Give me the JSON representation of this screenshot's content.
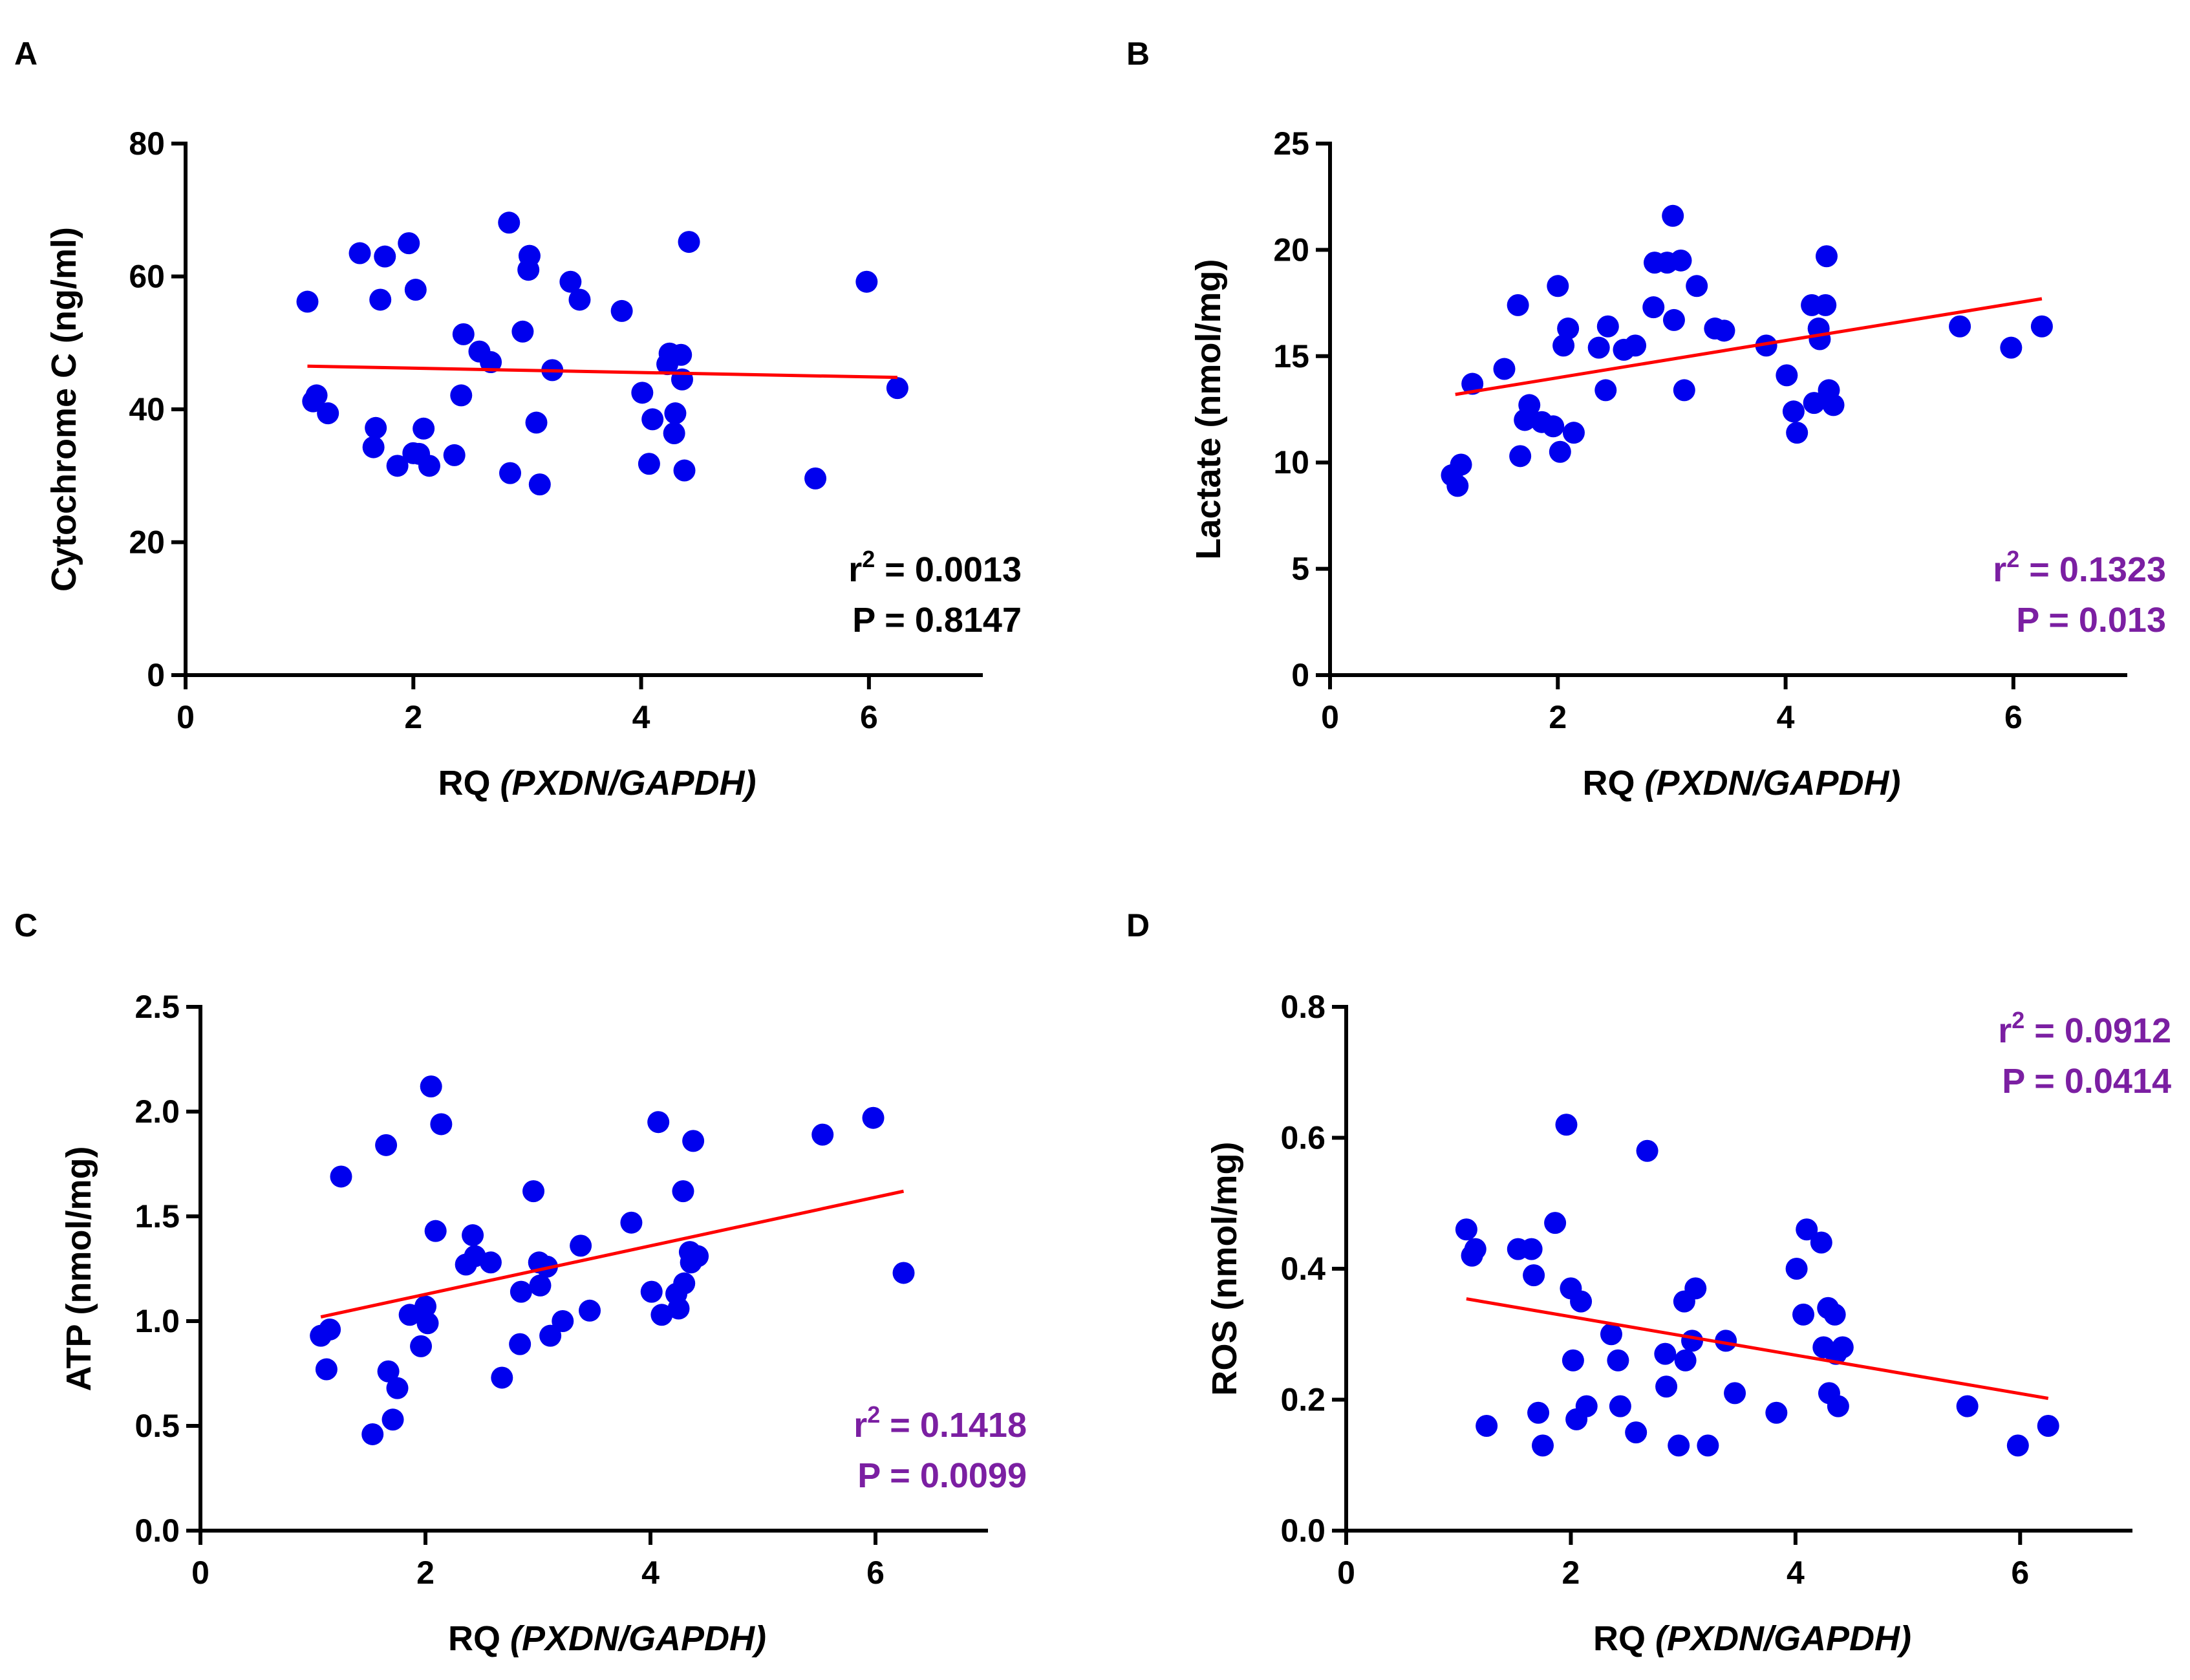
{
  "chart_data": [
    {
      "panel": "A",
      "type": "scatter",
      "xlabel_main": "RQ ",
      "xlabel_gene": "(PXDN/GAPDH)",
      "ylabel": "Cytochrome C (ng/ml)",
      "xlim": [
        0,
        7
      ],
      "ylim": [
        0,
        80
      ],
      "xticks": [
        0,
        2,
        4,
        6
      ],
      "yticks": [
        0,
        20,
        40,
        60,
        80
      ],
      "ytick_labels": [
        "0",
        "20",
        "40",
        "60",
        "80"
      ],
      "stat_color": "#000000",
      "r2_label": "r",
      "r2_sup": "2",
      "r2_value": " = 0.0013",
      "p_text": "P = 0.8147",
      "legend_position": "bottom-right",
      "regression": {
        "x": [
          1.07,
          6.25
        ],
        "y": [
          46.5,
          44.8
        ]
      },
      "x": [
        1.07,
        1.12,
        1.15,
        1.25,
        1.53,
        1.65,
        1.67,
        1.71,
        1.75,
        1.86,
        1.96,
        2.0,
        2.02,
        2.05,
        2.09,
        2.14,
        2.36,
        2.42,
        2.44,
        2.58,
        2.68,
        2.84,
        2.85,
        2.96,
        3.01,
        3.02,
        3.08,
        3.11,
        3.22,
        3.38,
        3.46,
        3.83,
        4.01,
        4.07,
        4.1,
        4.23,
        4.25,
        4.29,
        4.3,
        4.35,
        4.36,
        4.38,
        4.42,
        5.53,
        5.98,
        6.25
      ],
      "y": [
        56.2,
        41.2,
        42.1,
        39.4,
        63.5,
        34.3,
        37.2,
        56.5,
        63.0,
        31.5,
        65.0,
        33.4,
        58.0,
        33.3,
        37.1,
        31.5,
        33.1,
        42.1,
        51.3,
        48.7,
        47.1,
        68.1,
        30.4,
        51.7,
        61.0,
        63.1,
        38.0,
        28.7,
        45.9,
        59.2,
        56.5,
        54.8,
        42.5,
        31.8,
        38.5,
        46.8,
        48.4,
        36.4,
        39.4,
        48.2,
        44.5,
        30.8,
        65.2,
        29.6,
        59.2,
        43.2
      ]
    },
    {
      "panel": "B",
      "type": "scatter",
      "xlabel_main": "RQ ",
      "xlabel_gene": "(PXDN/GAPDH)",
      "ylabel": "Lactate (nmol/mg)",
      "xlim": [
        0,
        7
      ],
      "ylim": [
        0,
        25
      ],
      "xticks": [
        0,
        2,
        4,
        6
      ],
      "yticks": [
        0,
        5,
        10,
        15,
        20,
        25
      ],
      "ytick_labels": [
        "0",
        "5",
        "10",
        "15",
        "20",
        "25"
      ],
      "stat_color": "#7b1fa2",
      "r2_label": "r",
      "r2_sup": "2",
      "r2_value": " = 0.1323",
      "p_text": "P = 0.013",
      "legend_position": "bottom-right",
      "regression": {
        "x": [
          1.1,
          6.25
        ],
        "y": [
          13.2,
          17.7
        ]
      },
      "x": [
        1.07,
        1.12,
        1.15,
        1.25,
        1.53,
        1.65,
        1.67,
        1.71,
        1.75,
        1.86,
        1.96,
        2.0,
        2.02,
        2.05,
        2.09,
        2.14,
        2.36,
        2.42,
        2.44,
        2.58,
        2.68,
        2.84,
        2.85,
        2.96,
        3.01,
        3.02,
        3.08,
        3.11,
        3.22,
        3.38,
        3.46,
        3.83,
        4.01,
        4.07,
        4.1,
        4.23,
        4.25,
        4.29,
        4.3,
        4.35,
        4.36,
        4.38,
        4.42,
        5.53,
        5.98,
        6.25
      ],
      "y": [
        9.4,
        8.9,
        9.9,
        13.7,
        14.4,
        17.4,
        10.3,
        12.0,
        12.7,
        11.9,
        11.7,
        18.3,
        10.5,
        15.5,
        16.3,
        11.4,
        15.4,
        13.4,
        16.4,
        15.3,
        15.5,
        17.3,
        19.4,
        19.4,
        21.6,
        16.7,
        19.5,
        13.4,
        18.3,
        16.3,
        16.2,
        15.5,
        14.1,
        12.4,
        11.4,
        17.4,
        12.8,
        16.3,
        15.8,
        17.4,
        19.7,
        13.4,
        12.7,
        16.4,
        15.4,
        16.4
      ]
    },
    {
      "panel": "C",
      "type": "scatter",
      "xlabel_main": "RQ ",
      "xlabel_gene": "(PXDN/GAPDH)",
      "ylabel": "ATP (nmol/mg)",
      "xlim": [
        0,
        7
      ],
      "ylim": [
        0,
        2.5
      ],
      "xticks": [
        0,
        2,
        4,
        6
      ],
      "yticks": [
        0,
        0.5,
        1.0,
        1.5,
        2.0,
        2.5
      ],
      "ytick_labels": [
        "0.0",
        "0.5",
        "1.0",
        "1.5",
        "2.0",
        "2.5"
      ],
      "stat_color": "#7b1fa2",
      "r2_label": "r",
      "r2_sup": "2",
      "r2_value": " = 0.1418",
      "p_text": "P = 0.0099",
      "legend_position": "bottom-right",
      "regression": {
        "x": [
          1.07,
          6.25
        ],
        "y": [
          1.02,
          1.62
        ]
      },
      "x": [
        1.07,
        1.12,
        1.15,
        1.25,
        1.53,
        1.65,
        1.67,
        1.71,
        1.75,
        1.86,
        1.96,
        2.0,
        2.02,
        2.05,
        2.09,
        2.14,
        2.36,
        2.42,
        2.44,
        2.58,
        2.68,
        2.84,
        2.85,
        2.96,
        3.01,
        3.02,
        3.08,
        3.11,
        3.22,
        3.38,
        3.46,
        3.83,
        4.01,
        4.07,
        4.1,
        4.23,
        4.25,
        4.29,
        4.3,
        4.35,
        4.36,
        4.38,
        4.42,
        5.53,
        5.98,
        6.25
      ],
      "y": [
        0.93,
        0.77,
        0.96,
        1.69,
        0.46,
        1.84,
        0.76,
        0.53,
        0.68,
        1.03,
        0.88,
        1.07,
        0.99,
        2.12,
        1.43,
        1.94,
        1.27,
        1.41,
        1.31,
        1.28,
        0.73,
        0.89,
        1.14,
        1.62,
        1.28,
        1.17,
        1.26,
        0.93,
        1.0,
        1.36,
        1.05,
        1.47,
        1.14,
        1.95,
        1.03,
        1.13,
        1.06,
        1.62,
        1.18,
        1.33,
        1.28,
        1.86,
        1.31,
        1.89,
        1.97,
        1.23
      ]
    },
    {
      "panel": "D",
      "type": "scatter",
      "xlabel_main": "RQ ",
      "xlabel_gene": "(PXDN/GAPDH)",
      "ylabel": "ROS (nmol/mg)",
      "xlim": [
        0,
        7
      ],
      "ylim": [
        0,
        0.8
      ],
      "xticks": [
        0,
        2,
        4,
        6
      ],
      "yticks": [
        0,
        0.2,
        0.4,
        0.6,
        0.8
      ],
      "ytick_labels": [
        "0.0",
        "0.2",
        "0.4",
        "0.6",
        "0.8"
      ],
      "stat_color": "#7b1fa2",
      "r2_label": "r",
      "r2_sup": "2",
      "r2_value": " = 0.0912",
      "p_text": "P = 0.0414",
      "legend_position": "top-right",
      "regression": {
        "x": [
          1.07,
          6.25
        ],
        "y": [
          0.354,
          0.202
        ]
      },
      "x": [
        1.07,
        1.12,
        1.15,
        1.25,
        1.53,
        1.65,
        1.67,
        1.71,
        1.75,
        1.86,
        1.96,
        2.0,
        2.02,
        2.05,
        2.09,
        2.14,
        2.36,
        2.42,
        2.44,
        2.58,
        2.68,
        2.84,
        2.85,
        2.96,
        3.01,
        3.02,
        3.08,
        3.11,
        3.22,
        3.38,
        3.46,
        3.83,
        4.01,
        4.07,
        4.1,
        4.23,
        4.25,
        4.29,
        4.3,
        4.35,
        4.36,
        4.38,
        4.42,
        5.53,
        5.98,
        6.25
      ],
      "y": [
        0.46,
        0.42,
        0.43,
        0.16,
        0.43,
        0.43,
        0.39,
        0.18,
        0.13,
        0.47,
        0.62,
        0.37,
        0.26,
        0.17,
        0.35,
        0.19,
        0.3,
        0.26,
        0.19,
        0.15,
        0.58,
        0.27,
        0.22,
        0.13,
        0.35,
        0.26,
        0.29,
        0.37,
        0.13,
        0.29,
        0.21,
        0.18,
        0.4,
        0.33,
        0.46,
        0.44,
        0.28,
        0.34,
        0.21,
        0.33,
        0.27,
        0.19,
        0.28,
        0.19,
        0.13,
        0.16
      ]
    }
  ]
}
